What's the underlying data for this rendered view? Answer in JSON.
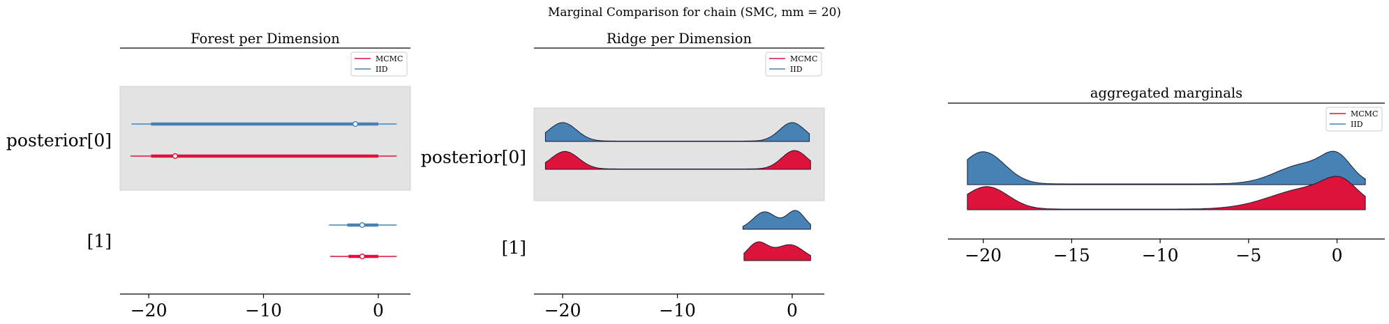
{
  "figure": {
    "suptitle": "Marginal Comparison for chain (SMC, mm = 20)"
  },
  "colors": {
    "MCMC": "#dc143c",
    "IID": "#4682b4",
    "highlight_band": "#e3e3e3"
  },
  "legend": [
    "MCMC",
    "IID"
  ],
  "chart_data": [
    {
      "type": "forest",
      "title": "Forest per Dimension",
      "xlim": [
        -22.5,
        2.8
      ],
      "xticks": [
        -20,
        -10,
        0
      ],
      "xtick_labels": [
        "−20",
        "−10",
        "0"
      ],
      "rows": [
        {
          "label": "posterior[0]",
          "highlight": true,
          "series": [
            {
              "name": "IID",
              "line": [
                -21.5,
                1.6
              ],
              "thick": [
                -19.8,
                0.0
              ],
              "point": -2.0
            },
            {
              "name": "MCMC",
              "line": [
                -21.6,
                1.6
              ],
              "thick": [
                -19.8,
                0.0
              ],
              "point": -17.7
            }
          ]
        },
        {
          "label": "[1]",
          "highlight": false,
          "series": [
            {
              "name": "IID",
              "line": [
                -4.3,
                1.6
              ],
              "thick": [
                -2.7,
                0.0
              ],
              "point": -1.4
            },
            {
              "name": "MCMC",
              "line": [
                -4.2,
                1.6
              ],
              "thick": [
                -2.6,
                0.0
              ],
              "point": -1.4
            }
          ]
        }
      ]
    },
    {
      "type": "ridgeline",
      "title": "Ridge per Dimension",
      "xlim": [
        -22.5,
        2.8
      ],
      "xticks": [
        -20,
        -10,
        0
      ],
      "xtick_labels": [
        "−20",
        "−10",
        "0"
      ],
      "rows": [
        {
          "label": "posterior[0]",
          "highlight": true,
          "series": [
            {
              "name": "IID",
              "range": [
                -21.5,
                1.5
              ],
              "peaks": [
                {
                  "mu": -20.0,
                  "sigma": 1.2,
                  "h": 1.0
                },
                {
                  "mu": 0.0,
                  "sigma": 1.1,
                  "h": 1.0
                }
              ],
              "base": 0.02
            },
            {
              "name": "MCMC",
              "range": [
                -21.5,
                1.6
              ],
              "peaks": [
                {
                  "mu": -19.8,
                  "sigma": 1.2,
                  "h": 0.95
                },
                {
                  "mu": 0.2,
                  "sigma": 1.1,
                  "h": 1.0
                }
              ],
              "base": 0.02
            }
          ]
        },
        {
          "label": "[1]",
          "highlight": false,
          "series": [
            {
              "name": "IID",
              "range": [
                -4.3,
                1.6
              ],
              "peaks": [
                {
                  "mu": -2.4,
                  "sigma": 1.0,
                  "h": 0.9
                },
                {
                  "mu": 0.3,
                  "sigma": 0.8,
                  "h": 0.95
                }
              ],
              "base": 0.0
            },
            {
              "name": "MCMC",
              "range": [
                -4.2,
                1.6
              ],
              "peaks": [
                {
                  "mu": -3.0,
                  "sigma": 0.9,
                  "h": 0.95
                },
                {
                  "mu": -0.2,
                  "sigma": 1.2,
                  "h": 0.85
                }
              ],
              "base": 0.0
            }
          ]
        }
      ]
    },
    {
      "type": "ridgeline",
      "title": "aggregated marginals",
      "xlim": [
        -22.0,
        2.7
      ],
      "xticks": [
        -20,
        -15,
        -10,
        -5,
        0
      ],
      "xtick_labels": [
        "−20",
        "−15",
        "−10",
        "−5",
        "0"
      ],
      "series": [
        {
          "name": "IID",
          "range": [
            -20.9,
            1.6
          ],
          "peaks": [
            {
              "mu": -20.0,
              "sigma": 1.2,
              "h": 0.9
            },
            {
              "mu": -1.8,
              "sigma": 1.6,
              "h": 0.55
            },
            {
              "mu": 0.0,
              "sigma": 0.8,
              "h": 0.6
            }
          ],
          "base": 0.02
        },
        {
          "name": "MCMC",
          "range": [
            -20.9,
            1.6
          ],
          "peaks": [
            {
              "mu": -19.8,
              "sigma": 1.2,
              "h": 0.75
            },
            {
              "mu": -1.5,
              "sigma": 2.2,
              "h": 0.7
            },
            {
              "mu": 0.2,
              "sigma": 0.9,
              "h": 0.55
            }
          ],
          "base": 0.02
        }
      ]
    }
  ]
}
